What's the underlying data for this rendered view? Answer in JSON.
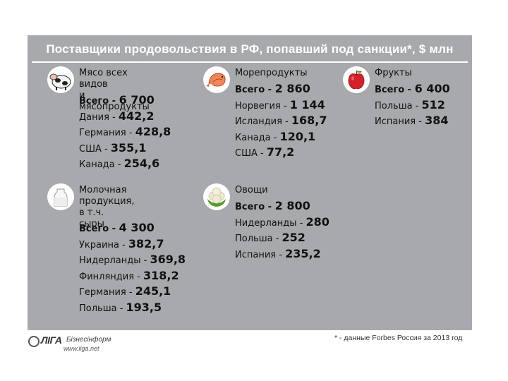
{
  "title": "Поставщики продовольствия в РФ, попавший под санкции*, $ млн",
  "footnote": "* - данные Forbes Россия за 2013 год",
  "logo": {
    "name": "ЛIГА",
    "sub": "Бізнесінформ",
    "url": "www.liga.net"
  },
  "chart_data": {
    "type": "table",
    "title": "Поставщики продовольствия в РФ, попавший под санкции*, $ млн",
    "categories": [
      {
        "id": "meat",
        "icon": "cow-icon",
        "name_lines": [
          "Мясо всех видов",
          "и мясопродукты"
        ],
        "total_label": "Всего - ",
        "total": "6 700",
        "rows": [
          {
            "label": "Дания - ",
            "value": "442,2"
          },
          {
            "label": "Германия - ",
            "value": "428,8"
          },
          {
            "label": "США - ",
            "value": "355,1"
          },
          {
            "label": "Канада - ",
            "value": "254,6"
          }
        ]
      },
      {
        "id": "seafood",
        "icon": "shrimp-icon",
        "name_lines": [
          "Морепродукты"
        ],
        "total_label": "Всего - ",
        "total": "2 860",
        "rows": [
          {
            "label": "Норвегия - ",
            "value": "1 144"
          },
          {
            "label": "Исландия - ",
            "value": "168,7"
          },
          {
            "label": "Канада - ",
            "value": "120,1"
          },
          {
            "label": "США - ",
            "value": "77,2"
          }
        ]
      },
      {
        "id": "fruit",
        "icon": "apple-icon",
        "name_lines": [
          "Фрукты"
        ],
        "total_label": "Всего - ",
        "total": "6 400",
        "rows": [
          {
            "label": "Польша - ",
            "value": "512"
          },
          {
            "label": "Испания - ",
            "value": "384"
          }
        ]
      },
      {
        "id": "dairy",
        "icon": "milk-icon",
        "name_lines": [
          "Молочная",
          "продукция, в т.ч.",
          "сыры"
        ],
        "total_label": "Всего - ",
        "total": "4 300",
        "rows": [
          {
            "label": "Украина - ",
            "value": "382,7"
          },
          {
            "label": "Нидерланды  - ",
            "value": "369,8"
          },
          {
            "label": "Финляндия - ",
            "value": "318,2"
          },
          {
            "label": "Германия - ",
            "value": "245,1"
          },
          {
            "label": "Польша - ",
            "value": "193,5"
          }
        ]
      },
      {
        "id": "vegetables",
        "icon": "cauliflower-icon",
        "name_lines": [
          "Овощи"
        ],
        "total_label": "Всего - ",
        "total": "2 800",
        "rows": [
          {
            "label": "Нидерланды - ",
            "value": "280"
          },
          {
            "label": "Польша - ",
            "value": "252"
          },
          {
            "label": "Испания - ",
            "value": "235,2"
          }
        ]
      }
    ]
  },
  "colors": {
    "panel": "#a7a9ac",
    "title_text": "#ffffff",
    "body_text": "#111111"
  }
}
